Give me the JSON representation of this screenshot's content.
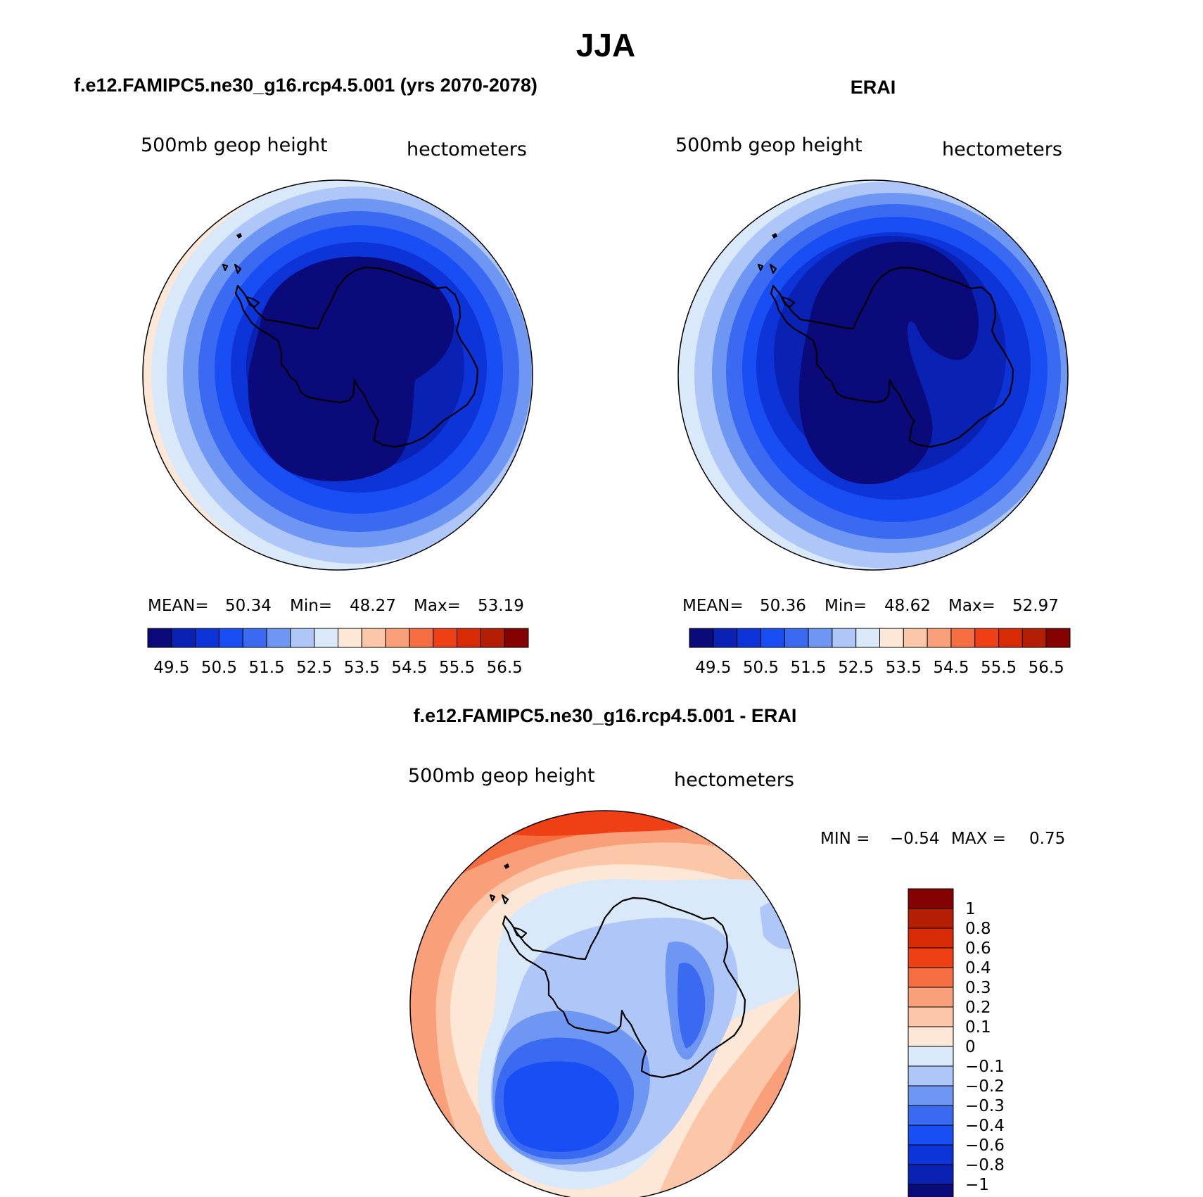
{
  "title": "JJA",
  "panels": [
    {
      "header": "f.e12.FAMIPC5.ne30_g16.rcp4.5.001 (yrs 2070-2078)",
      "variable": "500mb geop height",
      "units": "hectometers",
      "stats": {
        "mean_label": "MEAN=",
        "mean": "50.34",
        "min_label": "Min=",
        "min": "48.27",
        "max_label": "Max=",
        "max": "53.19"
      }
    },
    {
      "header": "ERAI",
      "variable": "500mb geop height",
      "units": "hectometers",
      "stats": {
        "mean_label": "MEAN=",
        "mean": "50.36",
        "min_label": "Min=",
        "min": "48.62",
        "max_label": "Max=",
        "max": "52.97"
      }
    },
    {
      "header": "f.e12.FAMIPC5.ne30_g16.rcp4.5.001 - ERAI",
      "variable": "500mb geop height",
      "units": "hectometers",
      "stats": {
        "min_label": "MIN =",
        "min": "−0.54",
        "max_label": "MAX =",
        "max": "0.75"
      }
    }
  ],
  "abs_colorbar": {
    "colors": [
      "#0a0a7a",
      "#0a22b4",
      "#0d34d8",
      "#1a4ef5",
      "#3a6af2",
      "#6e96f3",
      "#aec6f8",
      "#d9e9fa",
      "#fde7d6",
      "#fbc7a8",
      "#f9a07a",
      "#f56e42",
      "#ef3f15",
      "#d92a06",
      "#b41f03",
      "#850202"
    ],
    "labels": [
      "49.5",
      "50.5",
      "51.5",
      "52.5",
      "53.5",
      "54.5",
      "55.5",
      "56.5"
    ]
  },
  "diff_colorbar": {
    "colors": [
      "#0a0a7a",
      "#0a22b4",
      "#0d34d8",
      "#1a4ef5",
      "#3a6af2",
      "#6e96f3",
      "#aec6f8",
      "#d9e9fa",
      "#fde7d6",
      "#fbc7a8",
      "#f9a07a",
      "#f56e42",
      "#ef3f15",
      "#d92a06",
      "#b41f03",
      "#850202"
    ],
    "labels": [
      "1",
      "0.8",
      "0.6",
      "0.4",
      "0.3",
      "0.2",
      "0.1",
      "0",
      "−0.1",
      "−0.2",
      "−0.3",
      "−0.4",
      "−0.6",
      "−0.8",
      "−1"
    ]
  }
}
